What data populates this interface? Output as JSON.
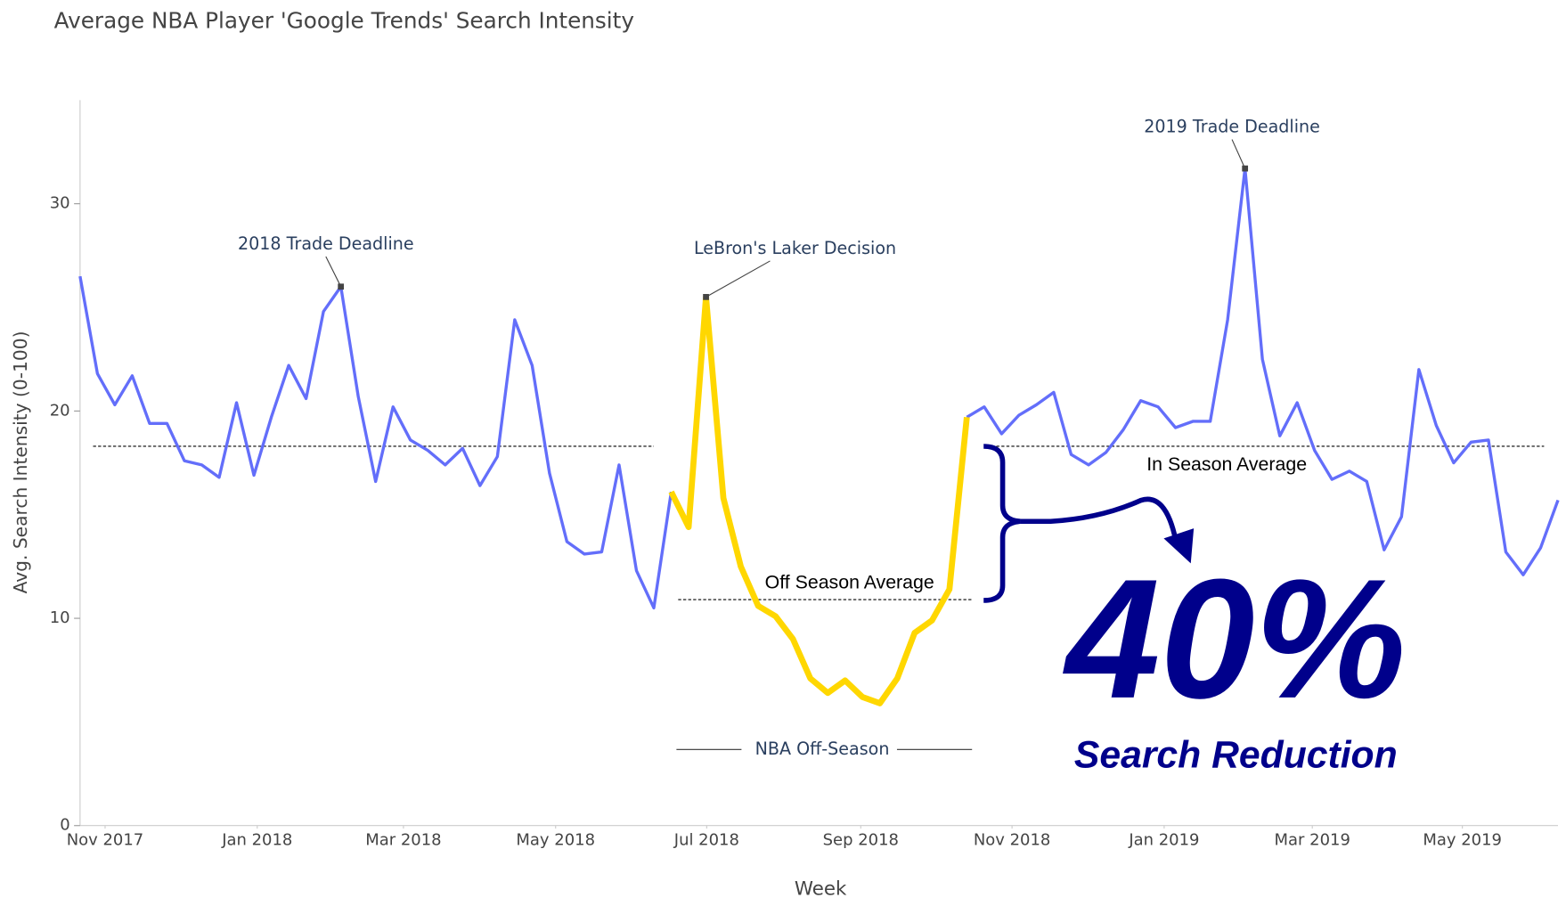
{
  "chart_data": {
    "type": "line",
    "title": "Average NBA Player 'Google Trends' Search Intensity",
    "x_title": "Week",
    "y_title": "Avg. Search Intensity (0-100)",
    "x": [
      0,
      1,
      2,
      3,
      4,
      5,
      6,
      7,
      8,
      9,
      10,
      11,
      12,
      13,
      14,
      15,
      16,
      17,
      18,
      19,
      20,
      21,
      22,
      23,
      24,
      25,
      26,
      27,
      28,
      29,
      30,
      31,
      32,
      33,
      34,
      35,
      36,
      37,
      38,
      39,
      40,
      41,
      42,
      43,
      44,
      45,
      46,
      47,
      48,
      49,
      50,
      51,
      52,
      53,
      54,
      55,
      56,
      57,
      58,
      59,
      60,
      61,
      62,
      63,
      64,
      65,
      66,
      67,
      68,
      69,
      70,
      71,
      72,
      73,
      74,
      75,
      76,
      77,
      78,
      79,
      80,
      81,
      82,
      83,
      84,
      85
    ],
    "xlim": [
      0,
      85
    ],
    "xticks": [
      {
        "value": 1.44,
        "label": "Nov 2017"
      },
      {
        "value": 10.19,
        "label": "Jan 2018"
      },
      {
        "value": 18.6,
        "label": "Mar 2018"
      },
      {
        "value": 27.35,
        "label": "May 2018"
      },
      {
        "value": 36.04,
        "label": "Jul 2018"
      },
      {
        "value": 44.9,
        "label": "Sep 2018"
      },
      {
        "value": 53.6,
        "label": "Nov 2018"
      },
      {
        "value": 62.35,
        "label": "Jan 2019"
      },
      {
        "value": 70.87,
        "label": "Mar 2019"
      },
      {
        "value": 79.5,
        "label": "May 2019"
      }
    ],
    "ylim": [
      0,
      35
    ],
    "yticks": [
      0,
      10,
      20,
      30
    ],
    "series": [
      {
        "color": "#636efa",
        "width": 3,
        "values": [
          26.5,
          21.8,
          20.3,
          21.7,
          19.4,
          19.4,
          17.6,
          17.4,
          16.8,
          20.4,
          16.9,
          19.7,
          22.2,
          20.6,
          24.8,
          26.0,
          20.7,
          16.6,
          20.2,
          18.6,
          18.1,
          17.4,
          18.2,
          16.4,
          17.8,
          24.4,
          22.2,
          17.0,
          13.7,
          13.1,
          13.2,
          17.4,
          12.3,
          10.5,
          16.1,
          null,
          null,
          null,
          null,
          null,
          null,
          null,
          null,
          null,
          null,
          null,
          null,
          null,
          null,
          null,
          null,
          19.7,
          20.2,
          18.9,
          19.8,
          20.3,
          20.9,
          17.9,
          17.4,
          18.0,
          19.1,
          20.5,
          20.2,
          19.2,
          19.5,
          19.5,
          24.4,
          31.7,
          22.5,
          18.8,
          20.4,
          18.1,
          16.7,
          17.1,
          16.6,
          13.3,
          14.9,
          22.0,
          19.3,
          17.5,
          18.5,
          18.6,
          13.2,
          12.1,
          13.4,
          15.7
        ]
      },
      {
        "color": "#ffd700",
        "width": 6,
        "values": [
          null,
          null,
          null,
          null,
          null,
          null,
          null,
          null,
          null,
          null,
          null,
          null,
          null,
          null,
          null,
          null,
          null,
          null,
          null,
          null,
          null,
          null,
          null,
          null,
          null,
          null,
          null,
          null,
          null,
          null,
          null,
          null,
          null,
          null,
          16.1,
          14.4,
          25.5,
          15.8,
          12.5,
          10.6,
          10.1,
          9.0,
          7.1,
          6.4,
          7.0,
          6.2,
          5.9,
          7.1,
          9.3,
          9.9,
          11.4,
          19.7,
          null,
          null,
          null,
          null,
          null,
          null,
          null,
          null,
          null,
          null,
          null,
          null,
          null,
          null,
          null,
          null,
          null,
          null,
          null,
          null,
          null,
          null,
          null,
          null,
          null,
          null,
          null,
          null,
          null,
          null,
          null,
          null,
          null,
          null
        ]
      }
    ],
    "annotations": [
      {
        "text": "2018 Trade Deadline",
        "x": 15,
        "y": 26.0
      },
      {
        "text": "LeBron's Laker Decision",
        "x": 36,
        "y": 25.5
      },
      {
        "text": "2019 Trade Deadline",
        "x": 67,
        "y": 31.7
      }
    ],
    "reference_lines": [
      {
        "label": "In Season Average",
        "value": 18.3,
        "x_ranges": [
          [
            0.75,
            33
          ],
          [
            52.7,
            84.2
          ]
        ]
      },
      {
        "label": "Off Season Average",
        "value": 10.9,
        "x_ranges": [
          [
            34.4,
            51.3
          ]
        ]
      }
    ],
    "span": {
      "label": "NBA Off-Season",
      "x": [
        34.3,
        51.3
      ]
    },
    "callout": {
      "headline": "40%",
      "text": "Search Reduction"
    }
  }
}
